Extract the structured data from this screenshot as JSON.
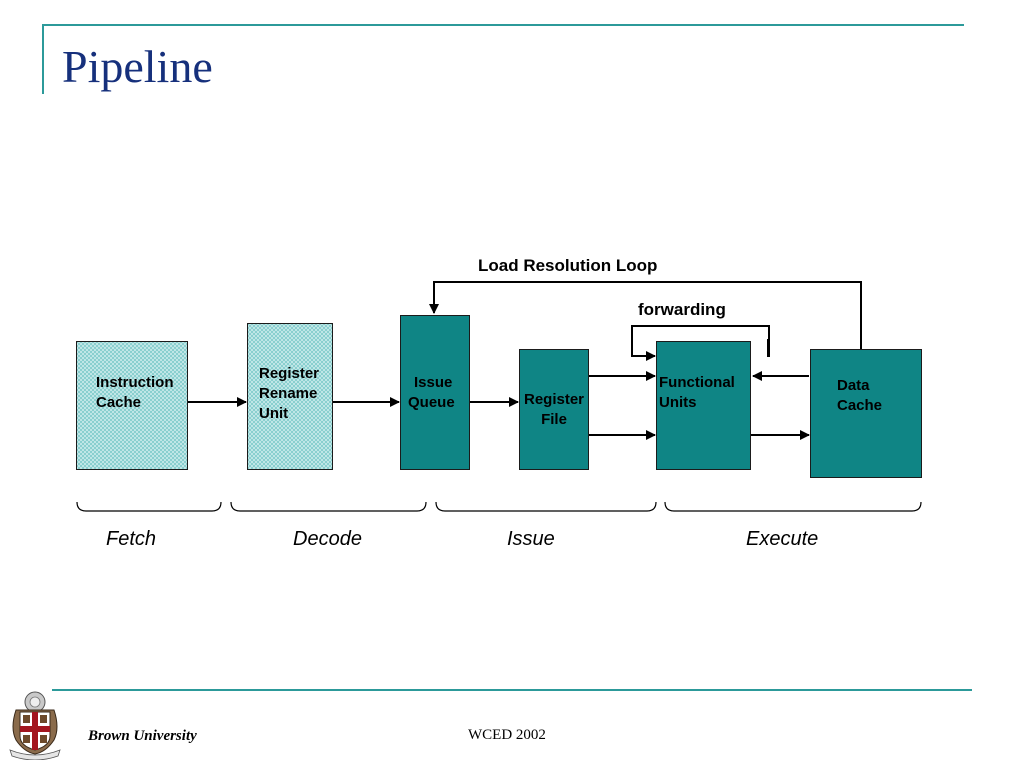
{
  "slide": {
    "title": "Pipeline",
    "footer_left": "Brown University",
    "footer_center": "WCED 2002"
  },
  "diagram": {
    "blocks": {
      "instruction_cache": [
        "Instruction",
        "Cache"
      ],
      "register_rename_unit": [
        "Register",
        "Rename",
        "Unit"
      ],
      "issue_queue": [
        "Issue",
        "Queue"
      ],
      "register_file": [
        "Register",
        "File"
      ],
      "functional_units": [
        "Functional",
        "Units"
      ],
      "data_cache": [
        "Data",
        "Cache"
      ]
    },
    "annotations": {
      "load_resolution_loop": "Load Resolution Loop",
      "forwarding": "forwarding"
    },
    "stages": [
      "Fetch",
      "Decode",
      "Issue",
      "Execute"
    ]
  },
  "colors": {
    "accent_rule": "#2c9a9a",
    "title": "#16307c",
    "block_solid": "#0f8585",
    "block_pattern": "#bfe6e6"
  }
}
